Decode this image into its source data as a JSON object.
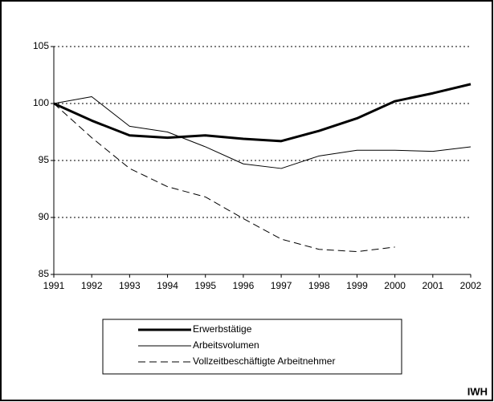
{
  "chart_data": {
    "type": "line",
    "x": [
      1991,
      1992,
      1993,
      1994,
      1995,
      1996,
      1997,
      1998,
      1999,
      2000,
      2001,
      2002
    ],
    "xlim": [
      1991,
      2002
    ],
    "xticks": [
      1991,
      1992,
      1993,
      1994,
      1995,
      1996,
      1997,
      1998,
      1999,
      2000,
      2001,
      2002
    ],
    "ylim": [
      85,
      105
    ],
    "yticks": [
      85,
      90,
      95,
      100,
      105
    ],
    "grid": true,
    "legend": "bottom",
    "series": [
      {
        "name": "Erwerbstätige",
        "color": "#000000",
        "line_width": 3,
        "dashed": false,
        "values": [
          100,
          98.5,
          97.2,
          97.0,
          97.2,
          96.9,
          96.7,
          97.6,
          98.7,
          100.2,
          100.9,
          101.7
        ]
      },
      {
        "name": "Arbeitsvolumen",
        "color": "#000000",
        "line_width": 1,
        "dashed": false,
        "values": [
          100,
          100.6,
          98.0,
          97.5,
          96.2,
          94.7,
          94.3,
          95.4,
          95.9,
          95.9,
          95.8,
          96.2
        ]
      },
      {
        "name": "Vollzeitbeschäftigte Arbeitnehmer",
        "color": "#000000",
        "line_width": 1,
        "dashed": true,
        "values": [
          100,
          97.0,
          94.3,
          92.7,
          91.8,
          89.9,
          88.1,
          87.2,
          87.0,
          87.4,
          null,
          null
        ]
      }
    ],
    "source": "IWH"
  }
}
